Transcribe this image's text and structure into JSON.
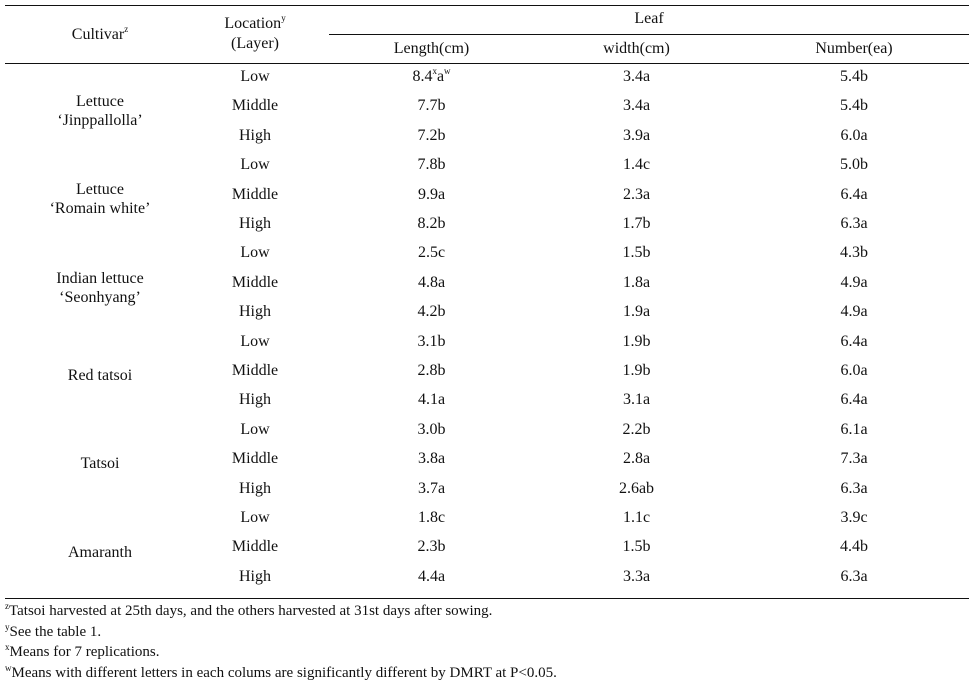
{
  "header": {
    "cultivar": "Cultivar",
    "cultivar_sup": "z",
    "location": "Location",
    "location_sup": "y",
    "layer": "(Layer)",
    "leaf": "Leaf",
    "length": "Length(cm)",
    "width": "width(cm)",
    "number": "Number(ea)"
  },
  "groups": [
    {
      "name_lines": [
        "Lettuce",
        "‘Jinppallolla’"
      ],
      "rows": [
        {
          "location": "Low",
          "length": "8.4",
          "length_sup1": "x",
          "length_mid": "a",
          "length_sup2": "w",
          "width": "3.4a",
          "number": "5.4b"
        },
        {
          "location": "Middle",
          "length": "7.7b",
          "width": "3.4a",
          "number": "5.4b"
        },
        {
          "location": "High",
          "length": "7.2b",
          "width": "3.9a",
          "number": "6.0a"
        }
      ]
    },
    {
      "name_lines": [
        "Lettuce",
        "‘Romain white’"
      ],
      "rows": [
        {
          "location": "Low",
          "length": "7.8b",
          "width": "1.4c",
          "number": "5.0b"
        },
        {
          "location": "Middle",
          "length": "9.9a",
          "width": "2.3a",
          "number": "6.4a"
        },
        {
          "location": "High",
          "length": "8.2b",
          "width": "1.7b",
          "number": "6.3a"
        }
      ]
    },
    {
      "name_lines": [
        "Indian lettuce",
        "‘Seonhyang’"
      ],
      "rows": [
        {
          "location": "Low",
          "length": "2.5c",
          "width": "1.5b",
          "number": "4.3b"
        },
        {
          "location": "Middle",
          "length": "4.8a",
          "width": "1.8a",
          "number": "4.9a"
        },
        {
          "location": "High",
          "length": "4.2b",
          "width": "1.9a",
          "number": "4.9a"
        }
      ]
    },
    {
      "name_lines": [
        "Red tatsoi"
      ],
      "rows": [
        {
          "location": "Low",
          "length": "3.1b",
          "width": "1.9b",
          "number": "6.4a"
        },
        {
          "location": "Middle",
          "length": "2.8b",
          "width": "1.9b",
          "number": "6.0a"
        },
        {
          "location": "High",
          "length": "4.1a",
          "width": "3.1a",
          "number": "6.4a"
        }
      ]
    },
    {
      "name_lines": [
        "Tatsoi"
      ],
      "rows": [
        {
          "location": "Low",
          "length": "3.0b",
          "width": "2.2b",
          "number": "6.1a"
        },
        {
          "location": "Middle",
          "length": "3.8a",
          "width": "2.8a",
          "number": "7.3a"
        },
        {
          "location": "High",
          "length": "3.7a",
          "width": "2.6ab",
          "number": "6.3a"
        }
      ]
    },
    {
      "name_lines": [
        "Amaranth"
      ],
      "rows": [
        {
          "location": "Low",
          "length": "1.8c",
          "width": "1.1c",
          "number": "3.9c"
        },
        {
          "location": "Middle",
          "length": "2.3b",
          "width": "1.5b",
          "number": "4.4b"
        },
        {
          "location": "High",
          "length": "4.4a",
          "width": "3.3a",
          "number": "6.3a"
        }
      ]
    }
  ],
  "footnotes": [
    {
      "mark": "z",
      "text": "Tatsoi harvested at 25th days, and the others harvested at 31st days after sowing."
    },
    {
      "mark": "y",
      "text": "See the table 1."
    },
    {
      "mark": "x",
      "text": "Means for 7 replications."
    },
    {
      "mark": "w",
      "text": "Means with different letters in each colums are significantly different by DMRT at P<0.05."
    }
  ]
}
